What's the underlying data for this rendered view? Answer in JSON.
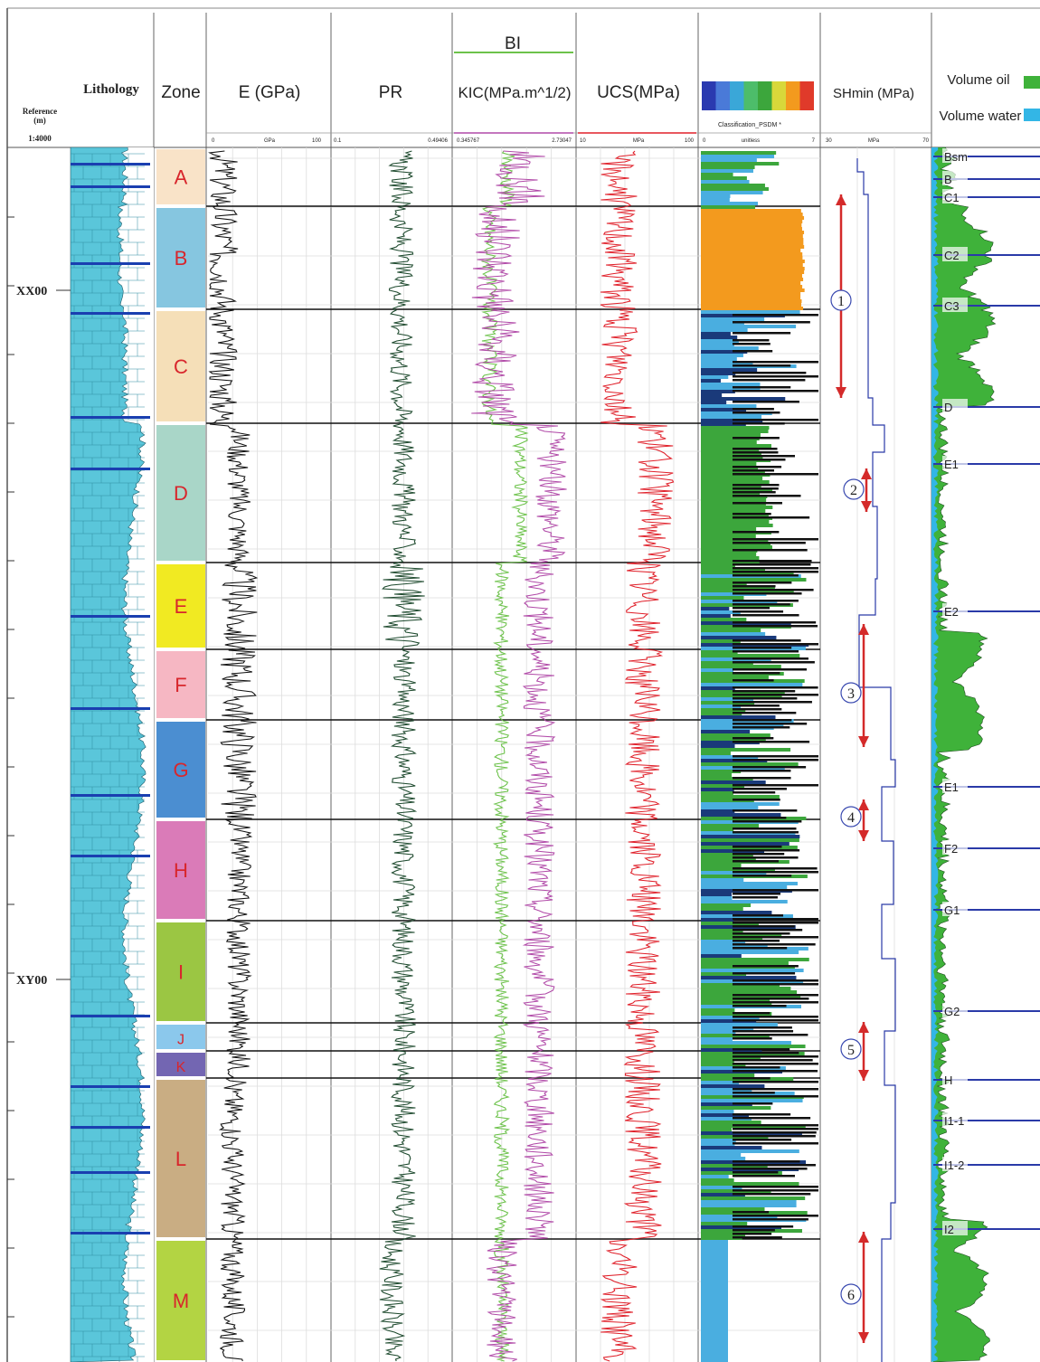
{
  "header": {
    "reference": "Reference",
    "unit": "(m)",
    "scale": "1:4000",
    "lithology": "Lithology",
    "zone": "Zone",
    "e": "E (GPa)",
    "pr": "PR",
    "bi": "BI",
    "kic": "KIC(MPa.m^1/2)",
    "ucs": "UCS(MPa)",
    "psdm": "Classification_PSDM *",
    "shmin": "SHmin (MPa)",
    "vol_oil": "Volume oil",
    "vol_water": "Volume water"
  },
  "scales": {
    "e": [
      "0",
      "GPa",
      "100"
    ],
    "pr": [
      "0.1",
      "0.49406"
    ],
    "kic": [
      "0.345767",
      "2.73047"
    ],
    "ucs": [
      "10",
      "MPa",
      "100"
    ],
    "psdm": [
      "0",
      "unitless",
      "7"
    ],
    "shmin": [
      "30",
      "MPa",
      "70"
    ]
  },
  "depth_labels": [
    {
      "label": "XX00",
      "row": 0
    },
    {
      "label": "XY00",
      "row": 1
    }
  ],
  "zones": [
    {
      "name": "A",
      "color": "#f9e3c8"
    },
    {
      "name": "B",
      "color": "#86c6e0"
    },
    {
      "name": "C",
      "color": "#f5dfb8"
    },
    {
      "name": "D",
      "color": "#a9d6c8"
    },
    {
      "name": "E",
      "color": "#f1ea22"
    },
    {
      "name": "F",
      "color": "#f6b7c3"
    },
    {
      "name": "G",
      "color": "#4b8ed1"
    },
    {
      "name": "H",
      "color": "#da7bb8"
    },
    {
      "name": "I",
      "color": "#9bc643"
    },
    {
      "name": "J",
      "color": "#8bc8ec"
    },
    {
      "name": "K",
      "color": "#7366b2"
    },
    {
      "name": "L",
      "color": "#c9ad83"
    },
    {
      "name": "M",
      "color": "#b3d443"
    }
  ],
  "intervals": [
    "1",
    "2",
    "3",
    "4",
    "5",
    "6"
  ],
  "markers": [
    "Bsm",
    "B",
    "C1",
    "C2",
    "C3",
    "D",
    "E1",
    "E2",
    "E1",
    "F2",
    "G1",
    "G2",
    "H",
    "I1-1",
    "I1-2",
    "I2"
  ],
  "colors": {
    "e_curve": "#111111",
    "pr_curve": "#1e4a2e",
    "kic_curve": "#b14aa8",
    "bi_curve": "#6cc24a",
    "ucs_curve": "#e0202a",
    "oil": "#3fb23a",
    "water": "#33b6e6",
    "marker_line": "#2a3aa8",
    "arrow": "#d42a2a",
    "psdm_orange": "#f39a1e",
    "psdm_green": "#3ca63c",
    "psdm_blue": "#4aaee0"
  }
}
